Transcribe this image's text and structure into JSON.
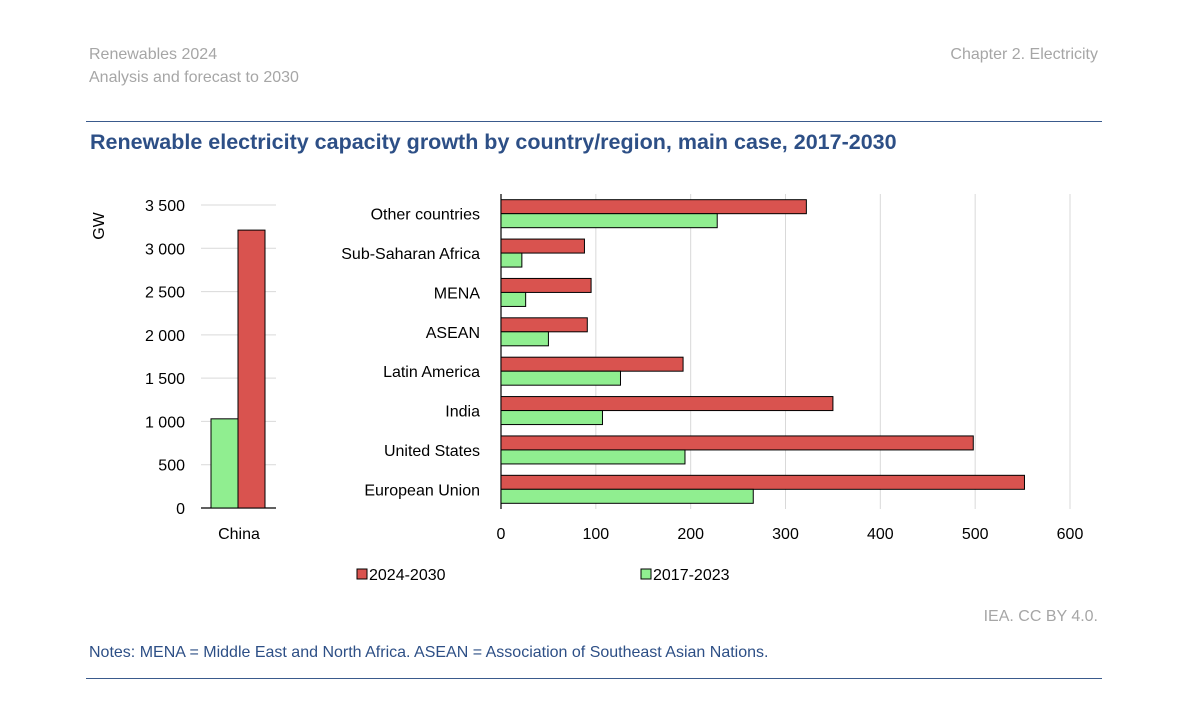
{
  "header": {
    "report_title": "Renewables 2024",
    "report_subtitle": "Analysis and forecast to 2030",
    "chapter": "Chapter 2. Electricity"
  },
  "figure_title": "Renewable electricity capacity growth by country/region, main case, 2017-2030",
  "credit": "IEA. CC BY 4.0.",
  "notes": "Notes: MENA = Middle East and North Africa. ASEAN = Association of Southeast Asian Nations.",
  "colors": {
    "series_2024_2030": "#d9534f",
    "series_2017_2023": "#90ee90",
    "grid": "#d9d9d9",
    "accent": "#2d4f86"
  },
  "chart_data": [
    {
      "type": "bar",
      "orientation": "vertical",
      "categories": [
        "China"
      ],
      "series": [
        {
          "name": "2017-2023",
          "values": [
            1030
          ]
        },
        {
          "name": "2024-2030",
          "values": [
            3210
          ]
        }
      ],
      "ylabel": "GW",
      "ylim": [
        0,
        3500
      ],
      "yticks": [
        "0",
        "500",
        "1 000",
        "1 500",
        "2 000",
        "2 500",
        "3 000",
        "3 500"
      ],
      "grid": true
    },
    {
      "type": "bar",
      "orientation": "horizontal",
      "categories": [
        "Other countries",
        "Sub-Saharan Africa",
        "MENA",
        "ASEAN",
        "Latin America",
        "India",
        "United States",
        "European Union"
      ],
      "series": [
        {
          "name": "2024-2030",
          "values": [
            322,
            88,
            95,
            91,
            192,
            350,
            498,
            552
          ]
        },
        {
          "name": "2017-2023",
          "values": [
            228,
            22,
            26,
            50,
            126,
            107,
            194,
            266
          ]
        }
      ],
      "xlim": [
        0,
        600
      ],
      "xticks": [
        "0",
        "100",
        "200",
        "300",
        "400",
        "500",
        "600"
      ],
      "grid": true
    }
  ],
  "legend": [
    {
      "label": "2024-2030"
    },
    {
      "label": "2017-2023"
    }
  ]
}
